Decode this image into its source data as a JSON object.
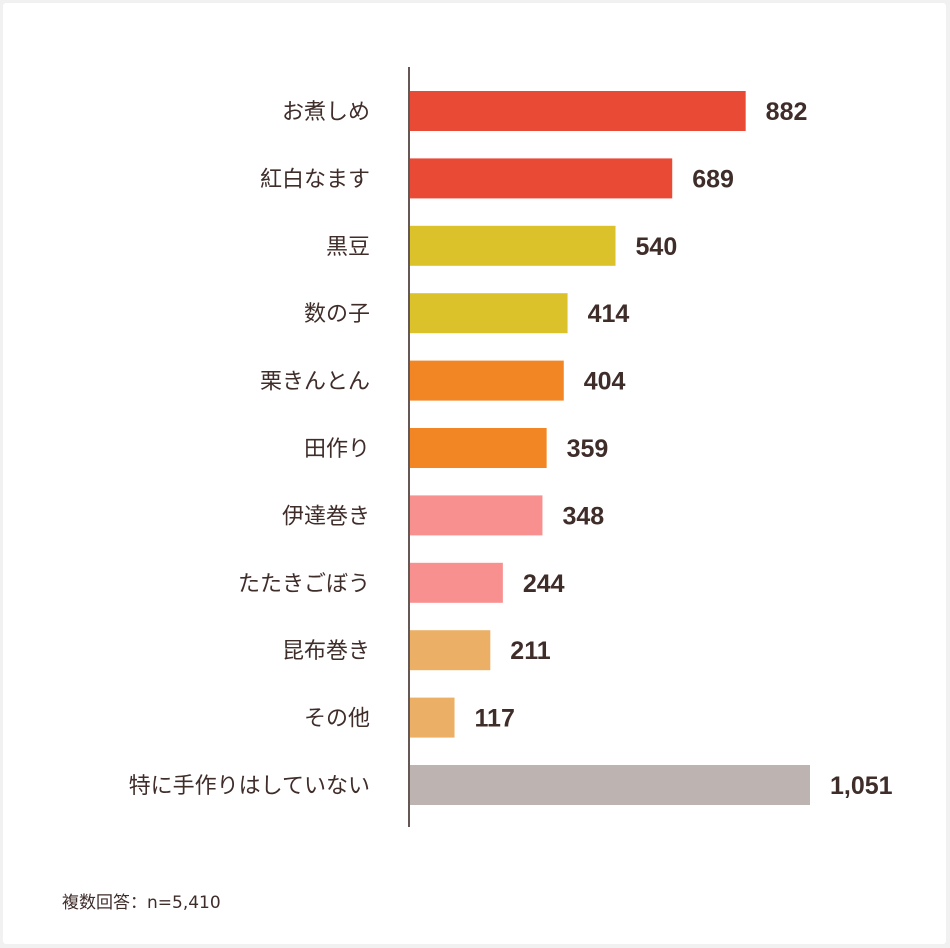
{
  "chart_data": {
    "type": "bar",
    "orientation": "horizontal",
    "categories": [
      "お煮しめ",
      "紅白なます",
      "黒豆",
      "数の子",
      "栗きんとん",
      "田作り",
      "伊達巻き",
      "たたきごぼう",
      "昆布巻き",
      "その他",
      "特に手作りはしていない"
    ],
    "values": [
      882,
      689,
      540,
      414,
      404,
      359,
      348,
      244,
      211,
      117,
      1051
    ],
    "value_labels": [
      "882",
      "689",
      "540",
      "414",
      "404",
      "359",
      "348",
      "244",
      "211",
      "117",
      "1,051"
    ],
    "bar_colors": [
      "#e84a35",
      "#e84a35",
      "#dbc22a",
      "#dbc22a",
      "#f28524",
      "#f28524",
      "#f89090",
      "#f89090",
      "#ebb066",
      "#ebb066",
      "#bdb3b0"
    ],
    "xlim": [
      0,
      1051
    ],
    "grid": false
  },
  "footnote": "複数回答：n=5,410"
}
